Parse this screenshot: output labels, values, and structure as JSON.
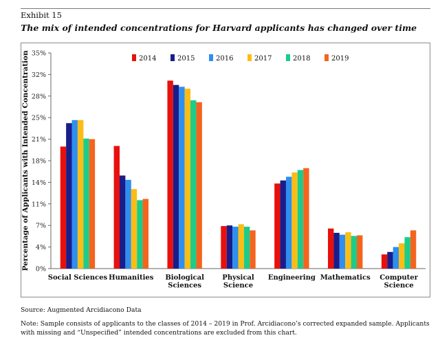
{
  "header": {
    "exhibit": "Exhibit 15",
    "title": "The mix of intended concentrations for Harvard applicants has changed over time"
  },
  "footer": {
    "source": "Source: Augmented Arcidiacono Data",
    "note": "Note: Sample consists of applicants to the classes of 2014 – 2019 in Prof. Arcidiacono’s corrected expanded sample. Applicants with missing and “Unspecified” intended concentrations are excluded from this chart."
  },
  "chart_data": {
    "type": "bar",
    "title": "The mix of intended concentrations for Harvard applicants has changed over time",
    "xlabel": "",
    "ylabel": "Percentage of Applicants with Intended Concentration",
    "ylim": [
      0,
      35
    ],
    "yticks": [
      0,
      3.5,
      7,
      10.5,
      14,
      17.5,
      21,
      24.5,
      28,
      31.5,
      35
    ],
    "ytick_labels": [
      "0%",
      "4%",
      "7%",
      "11%",
      "14%",
      "18%",
      "21%",
      "25%",
      "28%",
      "32%",
      "35%"
    ],
    "grid": false,
    "legend_position": "top",
    "categories": [
      [
        "Social Sciences"
      ],
      [
        "Humanities"
      ],
      [
        "Biological",
        "Sciences"
      ],
      [
        "Physical",
        "Science"
      ],
      [
        "Engineering"
      ],
      [
        "Mathematics"
      ],
      [
        "Computer",
        "Science"
      ]
    ],
    "series": [
      {
        "name": "2014",
        "color": "#e8100c",
        "values": [
          19.8,
          19.9,
          30.5,
          6.9,
          13.8,
          6.5,
          2.3
        ]
      },
      {
        "name": "2015",
        "color": "#1a1d8a",
        "values": [
          23.6,
          15.1,
          29.8,
          7.0,
          14.3,
          5.8,
          2.7
        ]
      },
      {
        "name": "2016",
        "color": "#2e8fef",
        "values": [
          24.1,
          14.4,
          29.5,
          6.8,
          14.9,
          5.5,
          3.5
        ]
      },
      {
        "name": "2017",
        "color": "#fbbd15",
        "values": [
          24.1,
          12.9,
          29.2,
          7.2,
          15.6,
          5.9,
          4.1
        ]
      },
      {
        "name": "2018",
        "color": "#1ccc8a",
        "values": [
          21.1,
          11.1,
          27.3,
          6.8,
          16.0,
          5.3,
          5.1
        ]
      },
      {
        "name": "2019",
        "color": "#f4641e",
        "values": [
          21.0,
          11.3,
          27.0,
          6.2,
          16.3,
          5.4,
          6.2
        ]
      }
    ]
  }
}
